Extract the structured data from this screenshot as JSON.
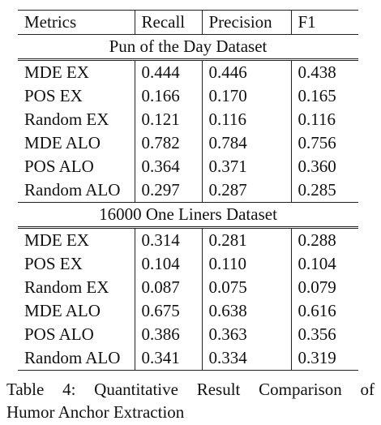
{
  "table": {
    "headers": [
      "Metrics",
      "Recall",
      "Precision",
      "F1"
    ],
    "sections": [
      {
        "title": "Pun of the Day Dataset",
        "rows": [
          [
            "MDE EX",
            "0.444",
            "0.446",
            "0.438"
          ],
          [
            "POS EX",
            "0.166",
            "0.170",
            "0.165"
          ],
          [
            "Random EX",
            "0.121",
            "0.116",
            "0.116"
          ],
          [
            "MDE ALO",
            "0.782",
            "0.784",
            "0.756"
          ],
          [
            "POS ALO",
            "0.364",
            "0.371",
            "0.360"
          ],
          [
            "Random ALO",
            "0.297",
            "0.287",
            "0.285"
          ]
        ]
      },
      {
        "title": "16000 One Liners Dataset",
        "rows": [
          [
            "MDE EX",
            "0.314",
            "0.281",
            "0.288"
          ],
          [
            "POS EX",
            "0.104",
            "0.110",
            "0.104"
          ],
          [
            "Random EX",
            "0.087",
            "0.075",
            "0.079"
          ],
          [
            "MDE ALO",
            "0.675",
            "0.638",
            "0.616"
          ],
          [
            "POS ALO",
            "0.386",
            "0.363",
            "0.356"
          ],
          [
            "Random ALO",
            "0.341",
            "0.334",
            "0.319"
          ]
        ]
      }
    ]
  },
  "caption": {
    "line1": "Table 4: Quantitative Result Comparison of",
    "line2": "Humor Anchor Extraction"
  }
}
